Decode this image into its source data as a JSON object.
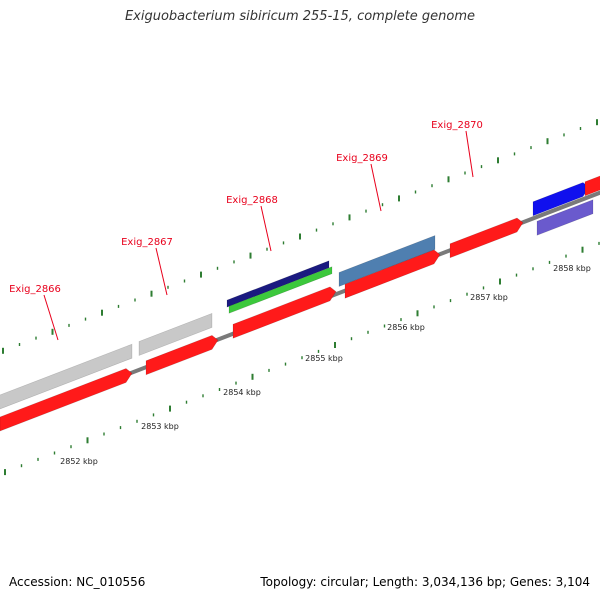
{
  "title": "Exiguobacterium sibiricum 255-15, complete genome",
  "footer": {
    "accession": "Accession: NC_010556",
    "stats": "Topology: circular; Length: 3,034,136 bp; Genes: 3,104"
  },
  "colors": {
    "backbone": "#7a7a7a",
    "gene_label": "#e8001c",
    "callout_line": "#e8001c",
    "ruler_tick": "#2e7d32",
    "cds_forward": "#ff1a1a",
    "gene_gray": "#c8c8c8",
    "gene_steelblue": "#4f7fb0",
    "gene_navy": "#1a1a80",
    "gene_green": "#3cc83c",
    "gene_blue": "#1010ee",
    "gene_slate": "#6a5acd"
  },
  "gene_labels": [
    "Exig_2866",
    "Exig_2867",
    "Exig_2868",
    "Exig_2869",
    "Exig_2870"
  ],
  "tick_labels": [
    "2852 kbp",
    "2853 kbp",
    "2854 kbp",
    "2855 kbp",
    "2856 kbp",
    "2857 kbp",
    "2858 kbp"
  ]
}
